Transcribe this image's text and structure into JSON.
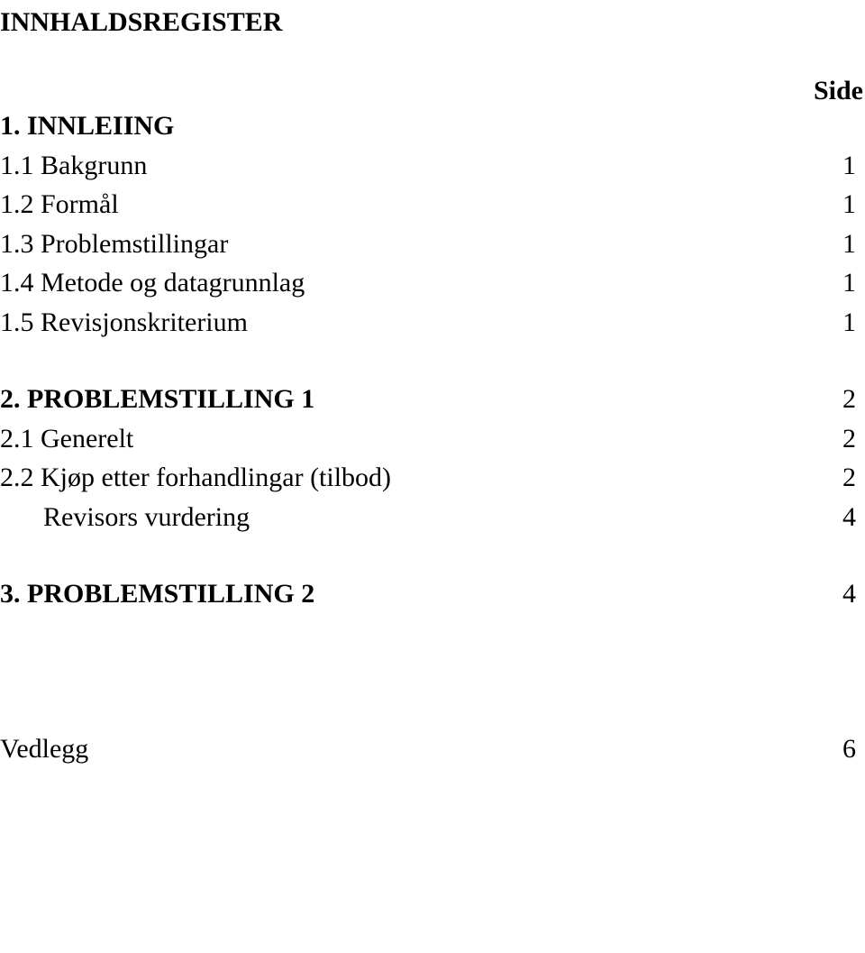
{
  "title": "INNHALDSREGISTER",
  "sideLabel": "Side",
  "sections": [
    {
      "heading": "1. INNLEIING",
      "items": [
        {
          "label": "1.1 Bakgrunn",
          "page": "1"
        },
        {
          "label": "1.2 Formål",
          "page": "1"
        },
        {
          "label": "1.3 Problemstillingar",
          "page": "1"
        },
        {
          "label": "1.4 Metode og datagrunnlag",
          "page": "1"
        },
        {
          "label": "1.5 Revisjonskriterium",
          "page": "1"
        }
      ]
    },
    {
      "heading": "2. PROBLEMSTILLING 1",
      "headingPage": "2",
      "items": [
        {
          "label": "2.1 Generelt",
          "page": "2"
        },
        {
          "label": "2.2 Kjøp etter forhandlingar (tilbod)",
          "page": "2"
        },
        {
          "label": "Revisors vurdering",
          "page": "4",
          "indent": true
        }
      ]
    },
    {
      "heading": "3. PROBLEMSTILLING 2",
      "headingPage": "4",
      "items": []
    }
  ],
  "appendix": {
    "label": "Vedlegg",
    "page": "6"
  }
}
